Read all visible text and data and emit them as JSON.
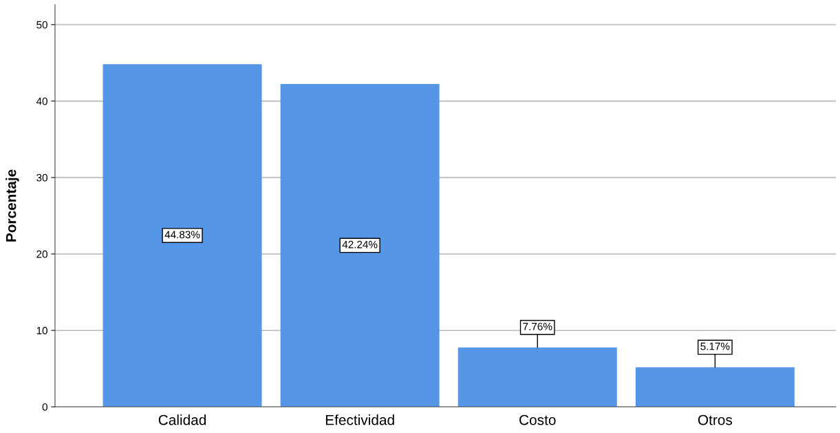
{
  "chart_data": {
    "type": "bar",
    "ylabel": "Porcentaje",
    "categories": [
      "Calidad",
      "Efectividad",
      "Costo",
      "Otros"
    ],
    "values": [
      44.83,
      42.24,
      7.76,
      5.17
    ],
    "value_labels": [
      "44.83%",
      "42.24%",
      "7.76%",
      "5.17%"
    ],
    "color": "#5596e6",
    "ylim": [
      0,
      52.6
    ],
    "yticks": [
      0,
      10,
      20,
      30,
      40,
      50
    ],
    "grid": "y"
  }
}
